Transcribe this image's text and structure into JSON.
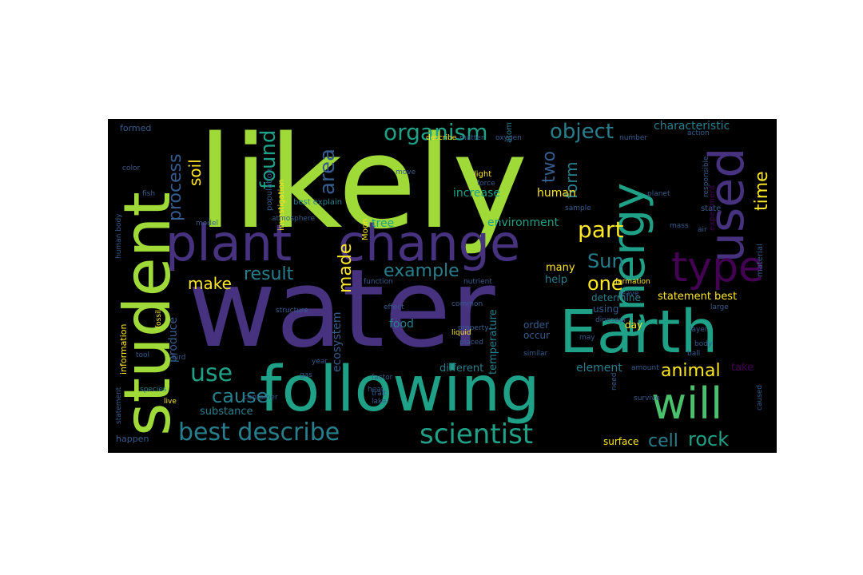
{
  "palette": {
    "background": "#000000",
    "page": "#ffffff",
    "yellow_green": "#a0da39",
    "green": "#4ac16d",
    "teal": "#1fa187",
    "cyan_teal": "#277f8e",
    "blue": "#365c8d",
    "indigo": "#46327e",
    "purple": "#440154",
    "yellow": "#fde725"
  },
  "words": {
    "likely": "likely",
    "water": "water",
    "student": "student",
    "following": "following",
    "earth": "Earth",
    "plant": "plant",
    "change": "change",
    "energy": "energy",
    "used": "used",
    "type": "type",
    "will": "will",
    "best_describe": "best describe",
    "scientist": "scientist",
    "use": "use",
    "organism": "organism",
    "object": "object",
    "found": "found",
    "area": "area",
    "two": "two",
    "process": "process",
    "soil": "soil",
    "form": "form",
    "time": "time",
    "part": "part",
    "sun": "Sun",
    "one": "one",
    "made": "made",
    "result": "result",
    "example": "example",
    "make": "make",
    "animal": "animal",
    "cause": "cause",
    "cell": "cell",
    "rock": "rock",
    "characteristic": "characteristic",
    "environment": "environment",
    "increase": "increase",
    "human": "human",
    "tree": "tree",
    "ecosystem": "ecosystem",
    "produce": "produce",
    "substance": "substance",
    "food": "food",
    "temperature": "temperature",
    "element": "element",
    "different": "different",
    "statement_best": "statement best",
    "surface": "surface",
    "happen": "happen",
    "information": "information",
    "investigation": "investigation",
    "population": "population",
    "best_explain": "best explain",
    "moon": "Moon",
    "many": "many",
    "help": "help",
    "order": "order",
    "day": "day",
    "determine": "determine",
    "using": "using",
    "occur": "occur",
    "take": "take",
    "material": "material",
    "experiment": "experiment",
    "state": "state",
    "formed": "formed",
    "light": "light",
    "force": "force",
    "atom": "atom",
    "planet": "planet",
    "sample": "sample",
    "responsible": "responsible",
    "action": "action",
    "color": "color",
    "air": "air",
    "bird": "bird",
    "tool": "tool",
    "fossil": "fossil",
    "structure": "structure",
    "effect": "effect",
    "property": "property",
    "liquid": "liquid",
    "placed": "placed",
    "similar": "similar",
    "factor": "factor",
    "heat": "heat",
    "trait": "trait",
    "lake": "lake",
    "container": "container",
    "species": "species",
    "live": "live",
    "amount": "amount",
    "survive": "survive",
    "layer": "layer",
    "body": "body",
    "large": "large",
    "statement": "statement",
    "caused": "caused",
    "need": "need",
    "atmosphere": "atmosphere",
    "model": "model",
    "fish": "fish",
    "describe": "describe",
    "matter": "matter",
    "oxygen": "oxygen",
    "move": "move",
    "formation": "formation",
    "mass": "mass",
    "ball": "ball",
    "leave": "leave",
    "year": "year",
    "gas": "gas",
    "may": "may",
    "number": "number",
    "common": "common",
    "function": "function",
    "nutrient": "nutrient",
    "human_body": "human body",
    "dinosaur": "dinosaur"
  }
}
